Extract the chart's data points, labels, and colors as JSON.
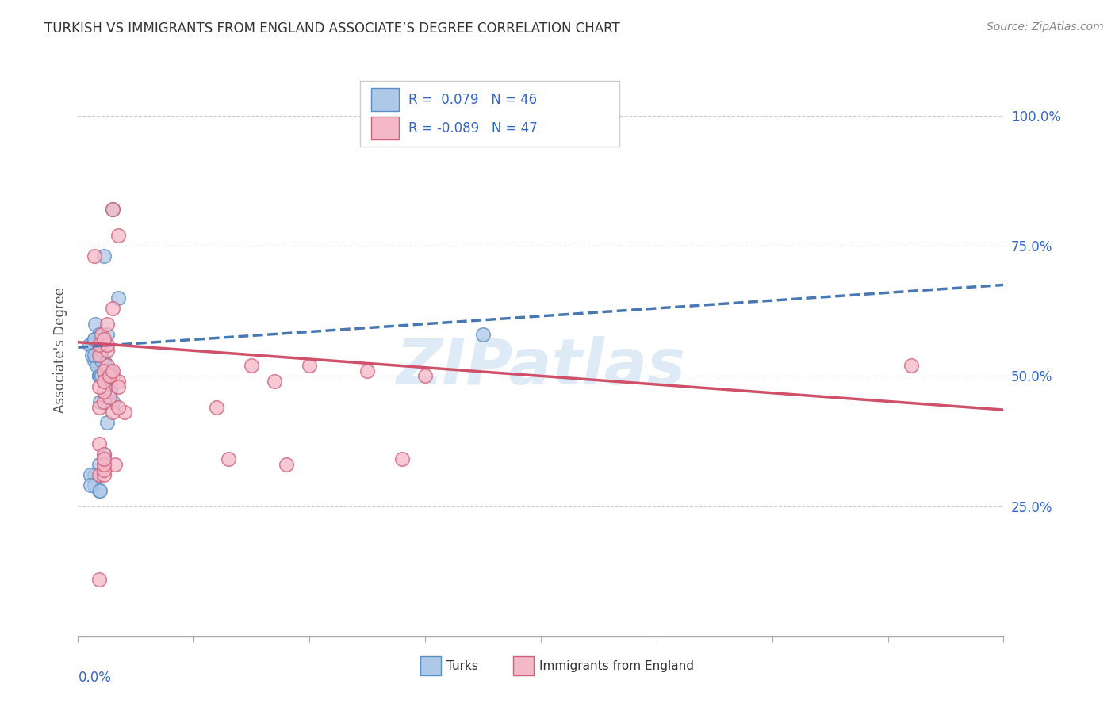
{
  "title": "TURKISH VS IMMIGRANTS FROM ENGLAND ASSOCIATE’S DEGREE CORRELATION CHART",
  "source": "Source: ZipAtlas.com",
  "ylabel": "Associate's Degree",
  "color_blue_fill": "#aec8e8",
  "color_blue_edge": "#5b8ec4",
  "color_pink_fill": "#f5b8c8",
  "color_pink_edge": "#d0607a",
  "color_blue_line": "#4878b4",
  "color_pink_line": "#d0506a",
  "color_ytick": "#3366cc",
  "watermark": "ZIPatlas",
  "xmin": 0.0,
  "xmax": 0.8,
  "ymin": 0.0,
  "ymax": 1.1,
  "blue_x": [
    0.015,
    0.018,
    0.02,
    0.022,
    0.012,
    0.016,
    0.02,
    0.025,
    0.018,
    0.022,
    0.01,
    0.014,
    0.02,
    0.018,
    0.025,
    0.03,
    0.014,
    0.018,
    0.022,
    0.012,
    0.016,
    0.019,
    0.023,
    0.028,
    0.035,
    0.03,
    0.022,
    0.018,
    0.014,
    0.011,
    0.019,
    0.023,
    0.028,
    0.35,
    0.014,
    0.022,
    0.014,
    0.018,
    0.02,
    0.025,
    0.011,
    0.019,
    0.028,
    0.023,
    0.02,
    0.014
  ],
  "blue_y": [
    0.6,
    0.58,
    0.55,
    0.52,
    0.56,
    0.54,
    0.55,
    0.58,
    0.5,
    0.51,
    0.56,
    0.53,
    0.54,
    0.55,
    0.51,
    0.82,
    0.57,
    0.5,
    0.53,
    0.54,
    0.52,
    0.5,
    0.49,
    0.48,
    0.65,
    0.45,
    0.35,
    0.33,
    0.31,
    0.31,
    0.45,
    0.46,
    0.47,
    0.58,
    0.57,
    0.73,
    0.29,
    0.28,
    0.5,
    0.41,
    0.29,
    0.28,
    0.51,
    0.52,
    0.53,
    0.54
  ],
  "pink_x": [
    0.02,
    0.025,
    0.03,
    0.035,
    0.014,
    0.02,
    0.025,
    0.03,
    0.035,
    0.022,
    0.018,
    0.025,
    0.018,
    0.12,
    0.018,
    0.022,
    0.027,
    0.035,
    0.04,
    0.018,
    0.025,
    0.022,
    0.03,
    0.035,
    0.022,
    0.018,
    0.032,
    0.13,
    0.022,
    0.03,
    0.018,
    0.2,
    0.25,
    0.3,
    0.018,
    0.022,
    0.027,
    0.03,
    0.022,
    0.022,
    0.15,
    0.022,
    0.022,
    0.17,
    0.28,
    0.72,
    0.18
  ],
  "pink_y": [
    0.58,
    0.6,
    0.82,
    0.77,
    0.73,
    0.55,
    0.52,
    0.5,
    0.49,
    0.51,
    0.54,
    0.55,
    0.56,
    0.44,
    0.44,
    0.45,
    0.46,
    0.48,
    0.43,
    0.37,
    0.56,
    0.57,
    0.43,
    0.44,
    0.47,
    0.31,
    0.33,
    0.34,
    0.35,
    0.63,
    0.11,
    0.52,
    0.51,
    0.5,
    0.48,
    0.49,
    0.5,
    0.51,
    0.31,
    0.32,
    0.52,
    0.33,
    0.34,
    0.49,
    0.34,
    0.52,
    0.33
  ],
  "blue_line_x": [
    0.0,
    0.8
  ],
  "blue_line_y": [
    0.555,
    0.675
  ],
  "pink_line_x": [
    0.0,
    0.8
  ],
  "pink_line_y": [
    0.565,
    0.435
  ]
}
